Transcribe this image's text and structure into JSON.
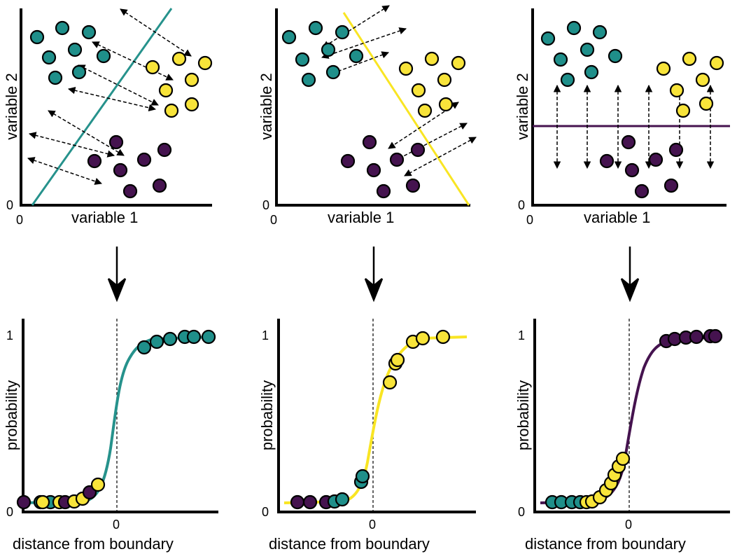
{
  "colors": {
    "teal": "#1f8f8a",
    "yellow": "#f8e43a",
    "purple": "#45134f",
    "axis": "#000000",
    "line_teal": "#26928c",
    "line_yellow": "#f9e523",
    "line_purple": "#45134f"
  },
  "top_panels": {
    "xlabel": "variable 1",
    "ylabel": "variable 2",
    "origin_x_tick": "0",
    "origin_y_tick": "0"
  },
  "bottom_panels": {
    "xlabel": "distance from boundary",
    "ylabel": "probability",
    "y_tick_top": "1",
    "y_tick_bottom": "0",
    "x_tick_center": "0"
  },
  "chart_data": [
    {
      "type": "diagram",
      "description_panel": "top-left",
      "boundary_color": "teal",
      "clusters": {
        "teal": [
          [
            1,
            9.5
          ],
          [
            2,
            9.9
          ],
          [
            3,
            9.7
          ],
          [
            1.5,
            8.6
          ],
          [
            2.5,
            8.8
          ],
          [
            3.3,
            8.5
          ],
          [
            1.7,
            8.0
          ],
          [
            2.6,
            8.0
          ]
        ],
        "yellow": [
          [
            5.8,
            8.5
          ],
          [
            6.7,
            8.8
          ],
          [
            7.7,
            8.4
          ],
          [
            6.3,
            7.6
          ],
          [
            7.3,
            7.8
          ],
          [
            6.2,
            6.8
          ],
          [
            7.0,
            6.6
          ]
        ],
        "purple": [
          [
            4.1,
            3.3
          ],
          [
            3.5,
            2.6
          ],
          [
            4.3,
            2.2
          ],
          [
            5.0,
            2.5
          ],
          [
            5.5,
            2.9
          ],
          [
            4.4,
            1.6
          ],
          [
            5.4,
            1.5
          ]
        ]
      }
    },
    {
      "type": "line",
      "description_panel": "bottom-left",
      "curve_color": "teal",
      "ylim": [
        0,
        1
      ],
      "points": {
        "purple": [
          [
            -5.5,
            0.02
          ],
          [
            -3.5,
            0.03
          ],
          [
            -1.5,
            0.07
          ]
        ],
        "yellow": [
          [
            -4.7,
            0.03
          ],
          [
            -3.0,
            0.03
          ],
          [
            -2.0,
            0.04
          ],
          [
            -1.0,
            0.05
          ],
          [
            -0.8,
            0.1
          ]
        ],
        "teal": [
          [
            -4.0,
            0.04
          ],
          [
            -3.3,
            0.04
          ],
          [
            1.4,
            0.92
          ],
          [
            2.0,
            0.96
          ],
          [
            2.8,
            0.97
          ],
          [
            3.6,
            0.98
          ],
          [
            4.3,
            0.99
          ],
          [
            5.3,
            0.99
          ]
        ]
      }
    },
    {
      "type": "diagram",
      "description_panel": "top-middle",
      "boundary_color": "yellow",
      "clusters": {
        "teal": [
          [
            1,
            9.5
          ],
          [
            2,
            9.9
          ],
          [
            3,
            9.7
          ],
          [
            1.5,
            8.6
          ],
          [
            2.5,
            8.8
          ],
          [
            3.3,
            8.5
          ],
          [
            1.7,
            8.0
          ],
          [
            2.6,
            8.0
          ]
        ],
        "yellow": [
          [
            5.8,
            8.5
          ],
          [
            6.7,
            8.8
          ],
          [
            7.7,
            8.4
          ],
          [
            6.3,
            7.6
          ],
          [
            7.3,
            7.8
          ],
          [
            6.2,
            6.8
          ],
          [
            7.0,
            6.6
          ]
        ],
        "purple": [
          [
            4.1,
            3.3
          ],
          [
            3.5,
            2.6
          ],
          [
            4.3,
            2.2
          ],
          [
            5.0,
            2.5
          ],
          [
            5.5,
            2.9
          ],
          [
            4.4,
            1.6
          ],
          [
            5.4,
            1.5
          ]
        ]
      }
    },
    {
      "type": "line",
      "description_panel": "bottom-middle",
      "curve_color": "yellow",
      "ylim": [
        0,
        1
      ],
      "points": {
        "purple": [
          [
            -5.5,
            0.03
          ],
          [
            -4.5,
            0.03
          ],
          [
            -3.5,
            0.03
          ]
        ],
        "teal": [
          [
            -3.0,
            0.04
          ],
          [
            -2.4,
            0.05
          ],
          [
            -0.6,
            0.17
          ],
          [
            -0.7,
            0.2
          ]
        ],
        "yellow": [
          [
            1.2,
            0.67
          ],
          [
            1.5,
            0.78
          ],
          [
            1.6,
            0.82
          ],
          [
            3.0,
            0.97
          ],
          [
            3.5,
            0.98
          ],
          [
            5.0,
            0.99
          ]
        ]
      }
    },
    {
      "type": "diagram",
      "description_panel": "top-right",
      "boundary_color": "purple",
      "clusters": {
        "teal": [
          [
            1,
            9.5
          ],
          [
            2,
            9.9
          ],
          [
            3,
            9.7
          ],
          [
            1.5,
            8.6
          ],
          [
            2.5,
            8.8
          ],
          [
            3.3,
            8.5
          ],
          [
            1.7,
            8.0
          ],
          [
            2.6,
            8.0
          ]
        ],
        "yellow": [
          [
            5.8,
            8.5
          ],
          [
            6.7,
            8.8
          ],
          [
            7.7,
            8.4
          ],
          [
            6.3,
            7.6
          ],
          [
            7.3,
            7.8
          ],
          [
            6.2,
            6.8
          ],
          [
            7.0,
            6.6
          ]
        ],
        "purple": [
          [
            4.1,
            3.3
          ],
          [
            3.5,
            2.6
          ],
          [
            4.3,
            2.2
          ],
          [
            5.0,
            2.5
          ],
          [
            5.5,
            2.9
          ],
          [
            4.4,
            1.6
          ],
          [
            5.4,
            1.5
          ]
        ]
      }
    },
    {
      "type": "line",
      "description_panel": "bottom-right",
      "curve_color": "purple",
      "ylim": [
        0,
        1
      ],
      "points": {
        "teal": [
          [
            -5.5,
            0.03
          ],
          [
            -5.0,
            0.03
          ],
          [
            -4.2,
            0.03
          ],
          [
            -3.8,
            0.03
          ],
          [
            -3.3,
            0.03
          ]
        ],
        "yellow": [
          [
            -3.0,
            0.03
          ],
          [
            -2.4,
            0.04
          ],
          [
            -1.8,
            0.07
          ],
          [
            -1.2,
            0.12
          ],
          [
            -0.7,
            0.2
          ],
          [
            -0.4,
            0.26
          ]
        ],
        "purple": [
          [
            2.5,
            0.97
          ],
          [
            3.0,
            0.98
          ],
          [
            3.6,
            0.98
          ],
          [
            4.2,
            0.99
          ],
          [
            5.5,
            0.99
          ],
          [
            6.0,
            0.99
          ]
        ]
      }
    }
  ]
}
